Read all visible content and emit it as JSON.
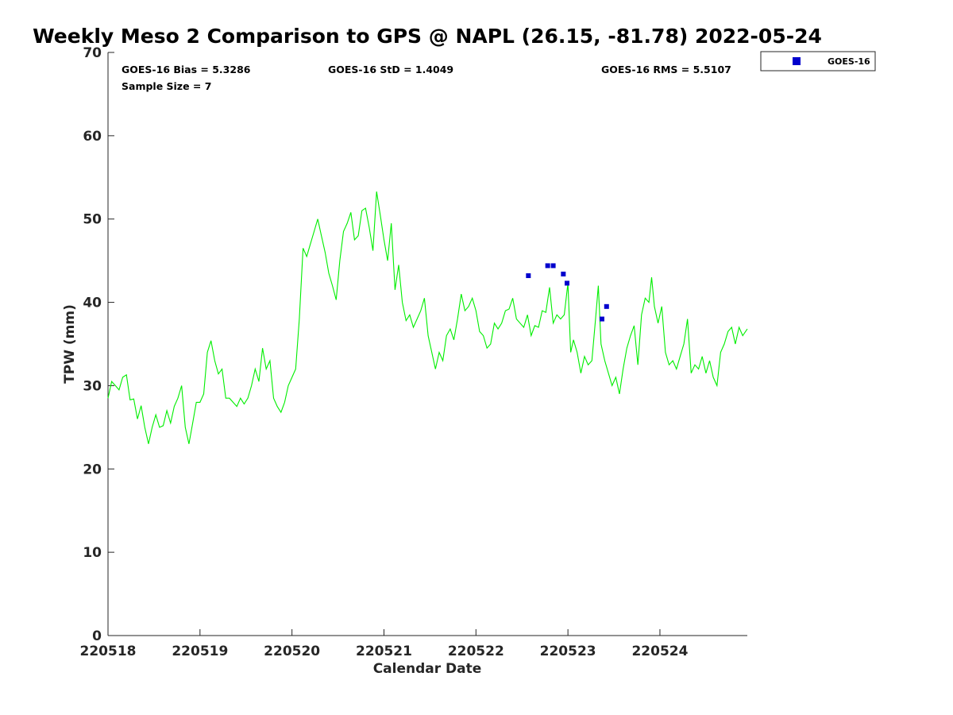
{
  "chart_data": {
    "type": "line",
    "title": "Weekly Meso 2 Comparison to GPS @ NAPL (26.15, -81.78) 2022-05-24",
    "xlabel": "Calendar Date",
    "ylabel": "TPW (mm)",
    "xlim": [
      220518,
      220524.95
    ],
    "ylim": [
      0,
      70
    ],
    "x_ticks": [
      220518,
      220519,
      220520,
      220521,
      220522,
      220523,
      220524
    ],
    "x_tick_labels": [
      "220518",
      "220519",
      "220520",
      "220521",
      "220522",
      "220523",
      "220524"
    ],
    "y_ticks": [
      0,
      10,
      20,
      30,
      40,
      50,
      60,
      70
    ],
    "y_tick_labels": [
      "0",
      "10",
      "20",
      "30",
      "40",
      "50",
      "60",
      "70"
    ],
    "grid": false,
    "legend": {
      "position": "outside-top-right",
      "entries": [
        "GOES-16"
      ]
    },
    "stats": {
      "bias": "GOES-16 Bias = 5.3286",
      "std": "GOES-16 StD = 1.4049",
      "rms": "GOES-16 RMS = 5.5107",
      "sample_size": "Sample Size = 7"
    },
    "series": [
      {
        "name": "",
        "type": "line",
        "color": "#00ee00",
        "points": [
          [
            220518.0,
            28.5
          ],
          [
            220518.04,
            30.5
          ],
          [
            220518.08,
            30.0
          ],
          [
            220518.12,
            29.5
          ],
          [
            220518.16,
            31.0
          ],
          [
            220518.2,
            31.3
          ],
          [
            220518.24,
            28.3
          ],
          [
            220518.28,
            28.4
          ],
          [
            220518.32,
            26.0
          ],
          [
            220518.36,
            27.6
          ],
          [
            220518.4,
            25.0
          ],
          [
            220518.44,
            23.0
          ],
          [
            220518.48,
            25.0
          ],
          [
            220518.52,
            26.5
          ],
          [
            220518.56,
            25.0
          ],
          [
            220518.6,
            25.2
          ],
          [
            220518.64,
            27.0
          ],
          [
            220518.68,
            25.5
          ],
          [
            220518.72,
            27.5
          ],
          [
            220518.76,
            28.5
          ],
          [
            220518.8,
            30.0
          ],
          [
            220518.84,
            25.0
          ],
          [
            220518.88,
            23.0
          ],
          [
            220518.92,
            25.5
          ],
          [
            220518.96,
            28.0
          ],
          [
            220519.0,
            28.0
          ],
          [
            220519.04,
            29.0
          ],
          [
            220519.08,
            34.0
          ],
          [
            220519.12,
            35.4
          ],
          [
            220519.16,
            33.0
          ],
          [
            220519.2,
            31.4
          ],
          [
            220519.24,
            32.0
          ],
          [
            220519.28,
            28.5
          ],
          [
            220519.32,
            28.5
          ],
          [
            220519.36,
            28.0
          ],
          [
            220519.4,
            27.5
          ],
          [
            220519.44,
            28.5
          ],
          [
            220519.48,
            27.8
          ],
          [
            220519.52,
            28.5
          ],
          [
            220519.56,
            30.0
          ],
          [
            220519.6,
            32.0
          ],
          [
            220519.64,
            30.5
          ],
          [
            220519.68,
            34.5
          ],
          [
            220519.72,
            32.0
          ],
          [
            220519.76,
            33.0
          ],
          [
            220519.8,
            28.5
          ],
          [
            220519.84,
            27.5
          ],
          [
            220519.88,
            26.8
          ],
          [
            220519.92,
            28.0
          ],
          [
            220519.96,
            30.0
          ],
          [
            220520.0,
            31.0
          ],
          [
            220520.04,
            32.0
          ],
          [
            220520.08,
            38.0
          ],
          [
            220520.12,
            46.5
          ],
          [
            220520.16,
            45.5
          ],
          [
            220520.2,
            47.0
          ],
          [
            220520.24,
            48.5
          ],
          [
            220520.28,
            50.0
          ],
          [
            220520.32,
            48.0
          ],
          [
            220520.36,
            46.0
          ],
          [
            220520.4,
            43.5
          ],
          [
            220520.44,
            42.0
          ],
          [
            220520.48,
            40.3
          ],
          [
            220520.52,
            45.0
          ],
          [
            220520.56,
            48.5
          ],
          [
            220520.6,
            49.5
          ],
          [
            220520.64,
            50.8
          ],
          [
            220520.68,
            47.5
          ],
          [
            220520.72,
            48.0
          ],
          [
            220520.76,
            51.0
          ],
          [
            220520.8,
            51.3
          ],
          [
            220520.84,
            49.0
          ],
          [
            220520.88,
            46.2
          ],
          [
            220520.92,
            53.3
          ],
          [
            220520.96,
            50.5
          ],
          [
            220521.0,
            47.5
          ],
          [
            220521.04,
            45.0
          ],
          [
            220521.08,
            49.5
          ],
          [
            220521.12,
            41.5
          ],
          [
            220521.16,
            44.5
          ],
          [
            220521.2,
            40.0
          ],
          [
            220521.24,
            37.8
          ],
          [
            220521.28,
            38.5
          ],
          [
            220521.32,
            37.0
          ],
          [
            220521.36,
            38.0
          ],
          [
            220521.4,
            39.0
          ],
          [
            220521.44,
            40.5
          ],
          [
            220521.48,
            36.0
          ],
          [
            220521.52,
            34.0
          ],
          [
            220521.56,
            32.0
          ],
          [
            220521.6,
            34.0
          ],
          [
            220521.64,
            33.0
          ],
          [
            220521.68,
            36.0
          ],
          [
            220521.72,
            36.8
          ],
          [
            220521.76,
            35.5
          ],
          [
            220521.8,
            38.0
          ],
          [
            220521.84,
            41.0
          ],
          [
            220521.88,
            39.0
          ],
          [
            220521.92,
            39.5
          ],
          [
            220521.96,
            40.5
          ],
          [
            220522.0,
            39.0
          ],
          [
            220522.04,
            36.5
          ],
          [
            220522.08,
            36.0
          ],
          [
            220522.12,
            34.5
          ],
          [
            220522.16,
            35.0
          ],
          [
            220522.2,
            37.5
          ],
          [
            220522.24,
            36.8
          ],
          [
            220522.28,
            37.5
          ],
          [
            220522.32,
            39.0
          ],
          [
            220522.36,
            39.2
          ],
          [
            220522.4,
            40.5
          ],
          [
            220522.44,
            38.0
          ],
          [
            220522.48,
            37.5
          ],
          [
            220522.52,
            37.0
          ],
          [
            220522.56,
            38.5
          ],
          [
            220522.6,
            36.0
          ],
          [
            220522.64,
            37.2
          ],
          [
            220522.68,
            37.0
          ],
          [
            220522.72,
            39.0
          ],
          [
            220522.76,
            38.8
          ],
          [
            220522.8,
            41.8
          ],
          [
            220522.84,
            37.5
          ],
          [
            220522.88,
            38.5
          ],
          [
            220522.92,
            38.0
          ],
          [
            220522.96,
            38.5
          ],
          [
            220523.0,
            42.3
          ],
          [
            220523.03,
            34.0
          ],
          [
            220523.06,
            35.5
          ],
          [
            220523.1,
            34.0
          ],
          [
            220523.14,
            31.5
          ],
          [
            220523.18,
            33.5
          ],
          [
            220523.22,
            32.5
          ],
          [
            220523.26,
            33.0
          ],
          [
            220523.3,
            38.0
          ],
          [
            220523.33,
            42.0
          ],
          [
            220523.36,
            35.0
          ],
          [
            220523.4,
            33.0
          ],
          [
            220523.44,
            31.5
          ],
          [
            220523.48,
            30.0
          ],
          [
            220523.52,
            31.0
          ],
          [
            220523.56,
            29.0
          ],
          [
            220523.6,
            32.0
          ],
          [
            220523.64,
            34.5
          ],
          [
            220523.68,
            36.0
          ],
          [
            220523.72,
            37.2
          ],
          [
            220523.76,
            32.5
          ],
          [
            220523.8,
            38.5
          ],
          [
            220523.84,
            40.5
          ],
          [
            220523.88,
            40.0
          ],
          [
            220523.91,
            43.0
          ],
          [
            220523.94,
            39.5
          ],
          [
            220523.98,
            37.5
          ],
          [
            220524.02,
            39.5
          ],
          [
            220524.06,
            34.0
          ],
          [
            220524.1,
            32.5
          ],
          [
            220524.14,
            33.0
          ],
          [
            220524.18,
            32.0
          ],
          [
            220524.22,
            33.5
          ],
          [
            220524.26,
            35.0
          ],
          [
            220524.3,
            38.0
          ],
          [
            220524.34,
            31.5
          ],
          [
            220524.38,
            32.5
          ],
          [
            220524.42,
            32.0
          ],
          [
            220524.46,
            33.5
          ],
          [
            220524.5,
            31.5
          ],
          [
            220524.54,
            33.0
          ],
          [
            220524.58,
            31.0
          ],
          [
            220524.62,
            30.0
          ],
          [
            220524.66,
            34.0
          ],
          [
            220524.7,
            35.0
          ],
          [
            220524.74,
            36.5
          ],
          [
            220524.78,
            37.0
          ],
          [
            220524.82,
            35.0
          ],
          [
            220524.86,
            37.0
          ],
          [
            220524.9,
            36.0
          ],
          [
            220524.95,
            36.8
          ]
        ]
      },
      {
        "name": "GOES-16",
        "type": "scatter",
        "color": "#0000cd",
        "points": [
          [
            220522.57,
            43.2
          ],
          [
            220522.78,
            44.4
          ],
          [
            220522.84,
            44.4
          ],
          [
            220522.95,
            43.4
          ],
          [
            220522.99,
            42.3
          ],
          [
            220523.37,
            38.0
          ],
          [
            220523.42,
            39.5
          ]
        ]
      }
    ]
  }
}
